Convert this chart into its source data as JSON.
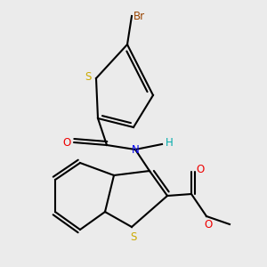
{
  "background_color": "#ebebeb",
  "atom_colors": {
    "C": "#000000",
    "H": "#00aaaa",
    "N": "#0000ee",
    "O": "#ee0000",
    "S": "#ccaa00",
    "Br": "#994400"
  },
  "bond_color": "#000000",
  "bond_width": 1.5,
  "font_size": 8.5
}
